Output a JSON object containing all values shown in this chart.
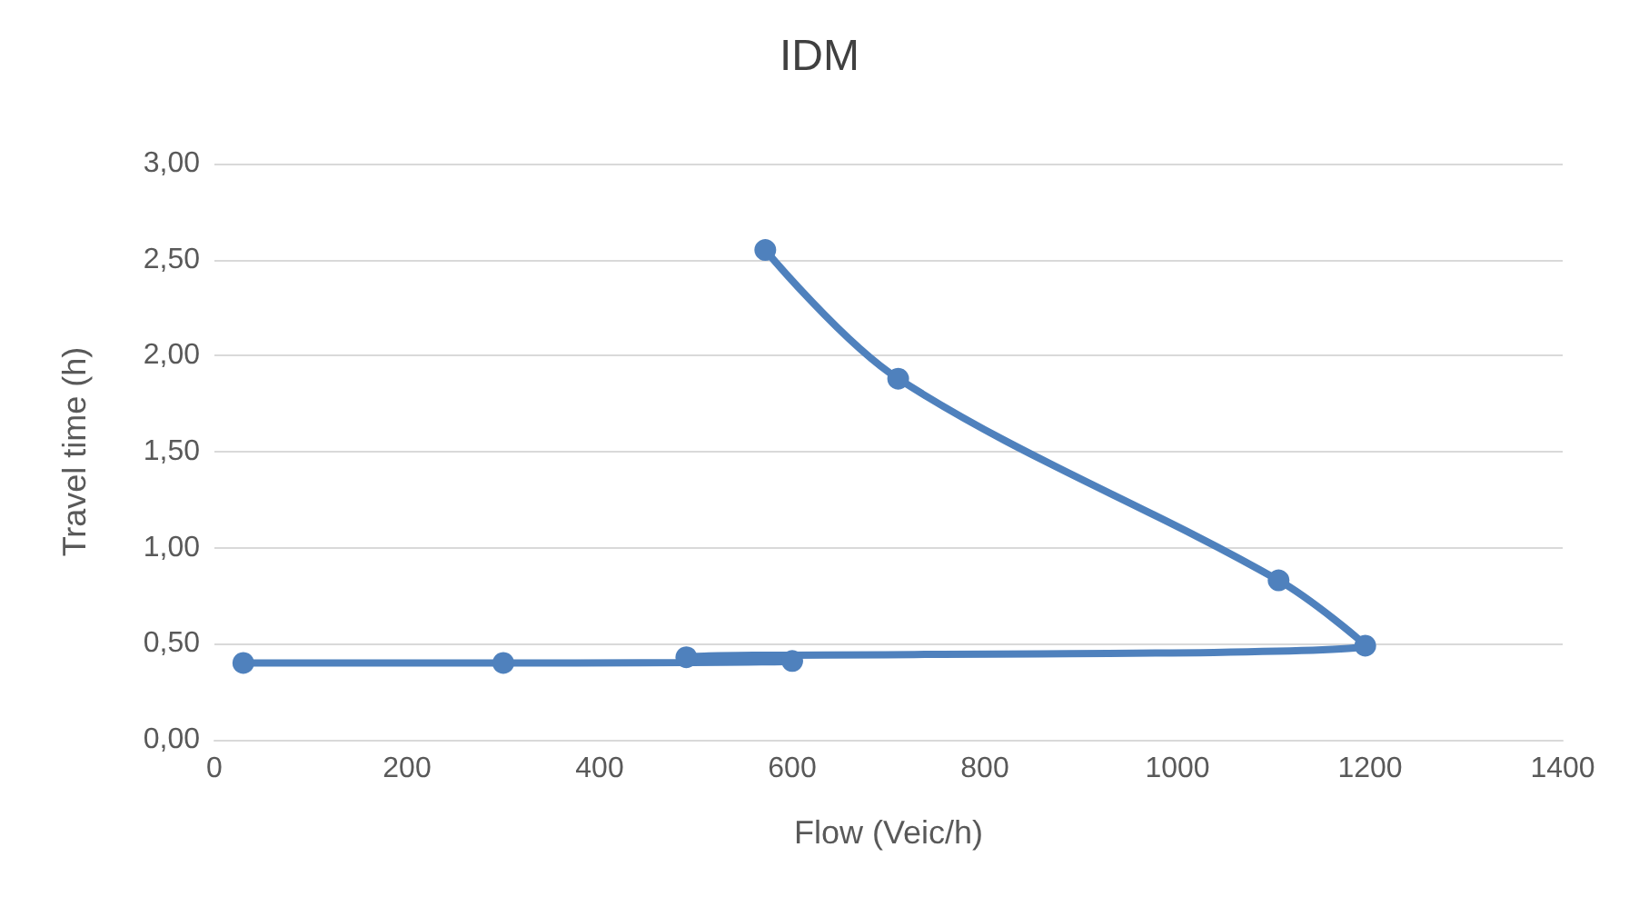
{
  "chart_data": {
    "type": "line",
    "title": "IDM",
    "xlabel": "Flow (Veic/h)",
    "ylabel": "Travel time (h)",
    "x": [
      30,
      300,
      600,
      490,
      1195,
      1105,
      710,
      572
    ],
    "series": [
      {
        "color": "#4f81bd",
        "values": [
          0.4,
          0.4,
          0.41,
          0.43,
          0.49,
          0.83,
          1.88,
          2.55
        ]
      }
    ],
    "xlim": [
      0,
      1400
    ],
    "xticks": [
      0,
      200,
      400,
      600,
      800,
      1000,
      1200,
      1400
    ],
    "ylim": [
      0,
      3
    ],
    "yticks": [
      {
        "value": 0,
        "label": "0,00"
      },
      {
        "value": 0.5,
        "label": "0,50"
      },
      {
        "value": 1,
        "label": "1,00"
      },
      {
        "value": 1.5,
        "label": "1,50"
      },
      {
        "value": 2,
        "label": "2,00"
      },
      {
        "value": 2.5,
        "label": "2,50"
      },
      {
        "value": 3,
        "label": "3,00"
      }
    ],
    "grid": "y",
    "marker": "circle",
    "line_style": "solid"
  }
}
